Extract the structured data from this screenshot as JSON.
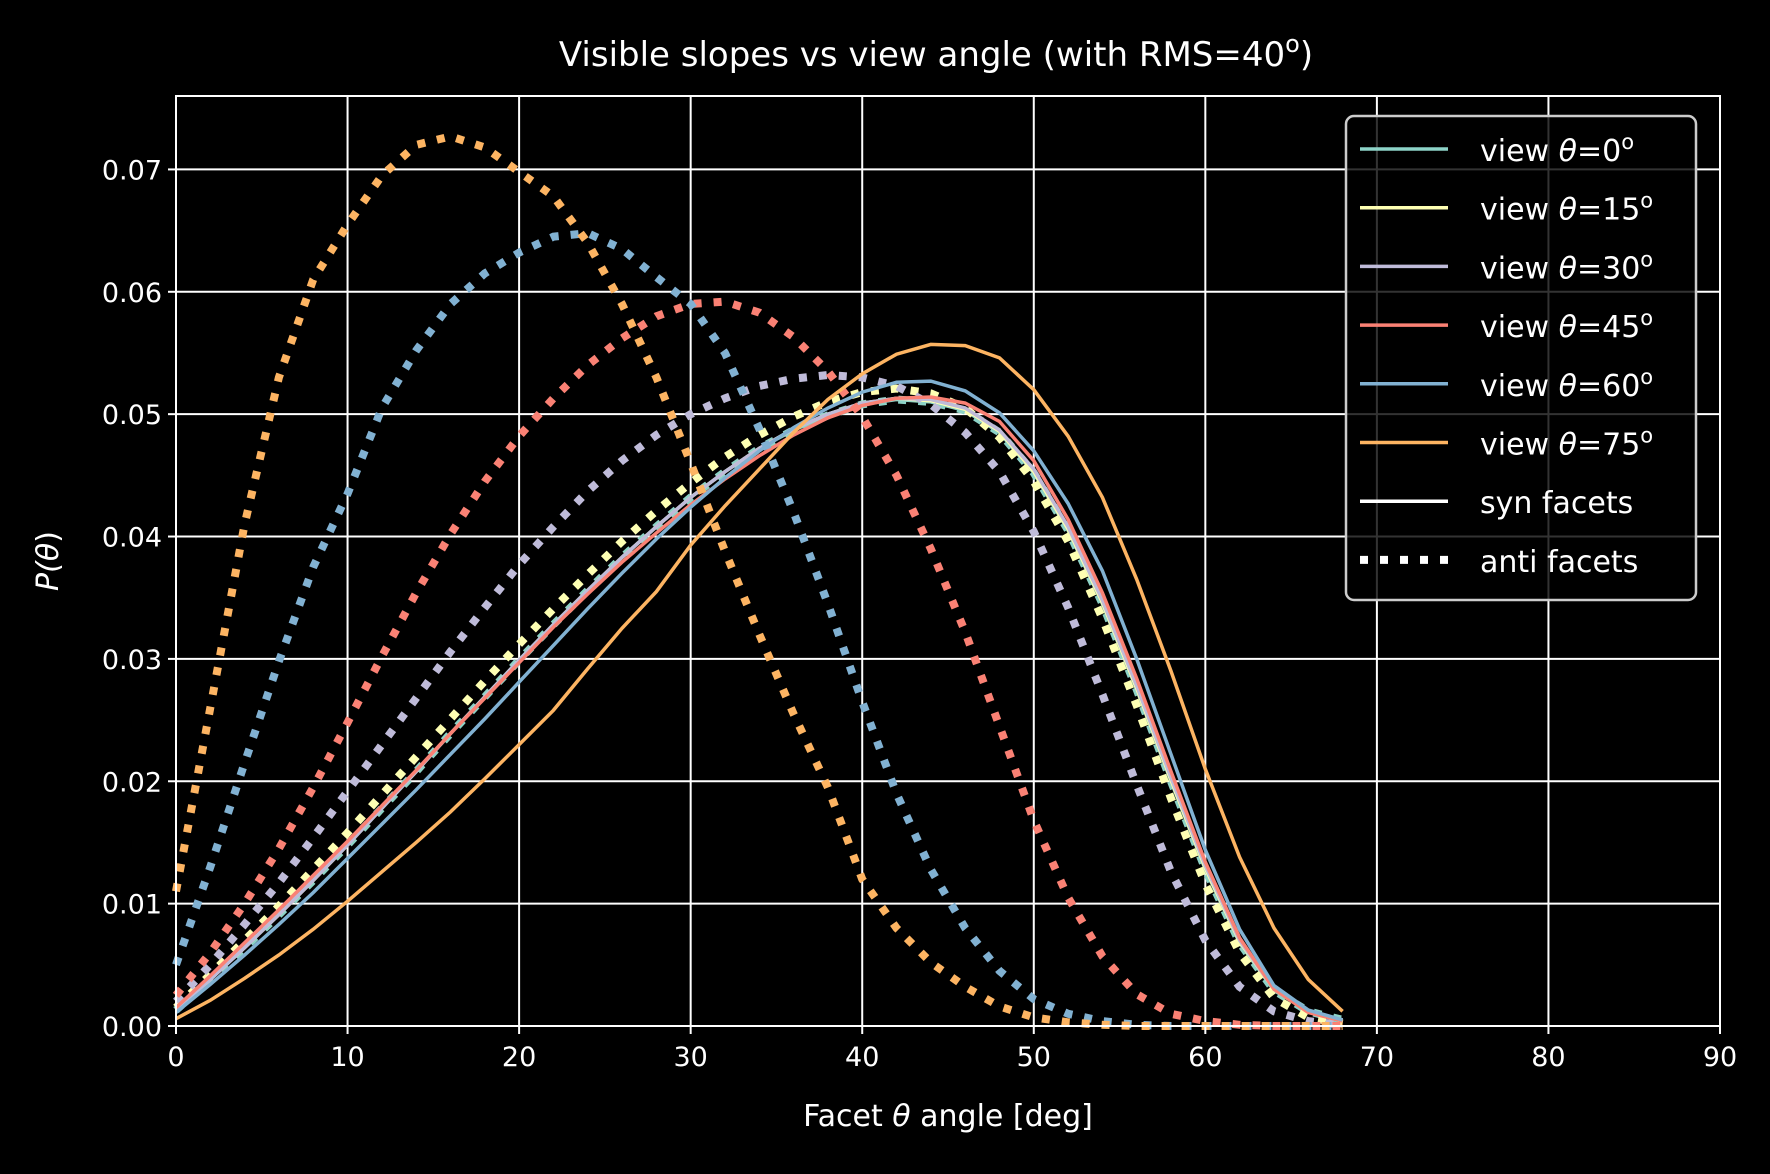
{
  "chart_data": {
    "type": "line",
    "title": "Visible slopes vs view angle (with RMS=40",
    "title_superscript": "o",
    "title_suffix": ")",
    "xlabel_prefix": "Facet ",
    "xlabel_symbol": "θ",
    "xlabel_suffix": " angle [deg]",
    "ylabel_prefix": "P(",
    "ylabel_symbol": "θ",
    "ylabel_suffix": ")",
    "xlim": [
      0,
      90
    ],
    "ylim": [
      0,
      0.076
    ],
    "xticks": [
      "0",
      "10",
      "20",
      "30",
      "40",
      "50",
      "60",
      "70",
      "80",
      "90"
    ],
    "yticks": [
      "0.00",
      "0.01",
      "0.02",
      "0.03",
      "0.04",
      "0.05",
      "0.06",
      "0.07"
    ],
    "grid": true,
    "background": "#000000",
    "legend_position": "top-right",
    "legend": [
      {
        "prefix": "view ",
        "symbol": "θ",
        "value": "=0",
        "sup": "o",
        "color": "#8dd3c7",
        "style": "solid"
      },
      {
        "prefix": "view ",
        "symbol": "θ",
        "value": "=15",
        "sup": "o",
        "color": "#feffb3",
        "style": "solid"
      },
      {
        "prefix": "view ",
        "symbol": "θ",
        "value": "=30",
        "sup": "o",
        "color": "#bfbbd9",
        "style": "solid"
      },
      {
        "prefix": "view ",
        "symbol": "θ",
        "value": "=45",
        "sup": "o",
        "color": "#fa8174",
        "style": "solid"
      },
      {
        "prefix": "view ",
        "symbol": "θ",
        "value": "=60",
        "sup": "o",
        "color": "#81b1d2",
        "style": "solid"
      },
      {
        "prefix": "view ",
        "symbol": "θ",
        "value": "=75",
        "sup": "o",
        "color": "#fdb462",
        "style": "solid"
      },
      {
        "prefix": "syn facets",
        "symbol": "",
        "value": "",
        "sup": "",
        "color": "#ffffff",
        "style": "solid"
      },
      {
        "prefix": "anti facets",
        "symbol": "",
        "value": "",
        "sup": "",
        "color": "#ffffff",
        "style": "dotted"
      }
    ],
    "x": [
      0,
      2,
      4,
      6,
      8,
      10,
      12,
      14,
      16,
      18,
      20,
      22,
      24,
      26,
      28,
      30,
      32,
      34,
      36,
      38,
      40,
      42,
      44,
      46,
      48,
      50,
      52,
      54,
      56,
      58,
      60,
      62,
      64,
      66,
      68
    ],
    "series": [
      {
        "view": 0,
        "kind": "syn",
        "color": "#8dd3c7",
        "style": "solid",
        "values": [
          0.0013,
          0.0038,
          0.0064,
          0.0091,
          0.0119,
          0.0148,
          0.0178,
          0.0208,
          0.0239,
          0.0269,
          0.0299,
          0.0328,
          0.0356,
          0.0383,
          0.0408,
          0.0432,
          0.0453,
          0.0472,
          0.0487,
          0.0499,
          0.0508,
          0.0512,
          0.051,
          0.0503,
          0.0485,
          0.0452,
          0.0405,
          0.0345,
          0.0275,
          0.02,
          0.0128,
          0.0068,
          0.0029,
          0.0012,
          0.0005
        ]
      },
      {
        "view": 0,
        "kind": "anti",
        "color": "#8dd3c7",
        "style": "dotted",
        "values": [
          0.0013,
          0.0038,
          0.0064,
          0.0091,
          0.0119,
          0.0148,
          0.0178,
          0.0208,
          0.0239,
          0.0269,
          0.0299,
          0.0328,
          0.0356,
          0.0383,
          0.0408,
          0.0432,
          0.0453,
          0.0472,
          0.0487,
          0.0499,
          0.0508,
          0.0512,
          0.051,
          0.0503,
          0.0485,
          0.0452,
          0.0405,
          0.0345,
          0.0275,
          0.02,
          0.0128,
          0.0068,
          0.0029,
          0.0012,
          0.0005
        ]
      },
      {
        "view": 15,
        "kind": "syn",
        "color": "#feffb3",
        "style": "solid",
        "values": [
          0.0013,
          0.0038,
          0.0064,
          0.0091,
          0.0119,
          0.0148,
          0.0178,
          0.0208,
          0.0239,
          0.0269,
          0.0299,
          0.0328,
          0.0356,
          0.0383,
          0.0408,
          0.0432,
          0.0453,
          0.0472,
          0.0488,
          0.05,
          0.0509,
          0.0513,
          0.0511,
          0.0504,
          0.0486,
          0.0453,
          0.0406,
          0.0346,
          0.0276,
          0.0201,
          0.0129,
          0.0069,
          0.003,
          0.0012,
          0.0005
        ]
      },
      {
        "view": 15,
        "kind": "anti",
        "color": "#feffb3",
        "style": "dotted",
        "values": [
          0.0015,
          0.0042,
          0.007,
          0.0098,
          0.0128,
          0.0158,
          0.0189,
          0.022,
          0.0251,
          0.0282,
          0.0312,
          0.0341,
          0.0369,
          0.0396,
          0.0421,
          0.0444,
          0.0465,
          0.0483,
          0.0498,
          0.051,
          0.0518,
          0.0521,
          0.0517,
          0.0505,
          0.0481,
          0.0445,
          0.0396,
          0.0333,
          0.0262,
          0.0186,
          0.0116,
          0.006,
          0.0023,
          0.0007,
          0.0002
        ]
      },
      {
        "view": 30,
        "kind": "syn",
        "color": "#bfbbd9",
        "style": "solid",
        "values": [
          0.0013,
          0.0038,
          0.0064,
          0.0091,
          0.0119,
          0.0148,
          0.0178,
          0.0208,
          0.0239,
          0.0269,
          0.0299,
          0.0328,
          0.0356,
          0.0383,
          0.0408,
          0.0432,
          0.0453,
          0.0472,
          0.0488,
          0.05,
          0.0509,
          0.0513,
          0.0512,
          0.0505,
          0.0487,
          0.0455,
          0.0408,
          0.0348,
          0.0278,
          0.0203,
          0.0131,
          0.007,
          0.003,
          0.0012,
          0.0005
        ]
      },
      {
        "view": 30,
        "kind": "anti",
        "color": "#bfbbd9",
        "style": "dotted",
        "values": [
          0.002,
          0.005,
          0.0083,
          0.0117,
          0.0154,
          0.0192,
          0.023,
          0.0268,
          0.0306,
          0.0342,
          0.0377,
          0.0408,
          0.0437,
          0.0462,
          0.0483,
          0.05,
          0.0513,
          0.0523,
          0.0529,
          0.0532,
          0.053,
          0.0523,
          0.0508,
          0.0485,
          0.0453,
          0.0404,
          0.0342,
          0.0271,
          0.0197,
          0.0126,
          0.007,
          0.0032,
          0.0012,
          0.0004,
          0.0001
        ]
      },
      {
        "view": 45,
        "kind": "syn",
        "color": "#fa8174",
        "style": "solid",
        "values": [
          0.0015,
          0.0041,
          0.0068,
          0.0095,
          0.0123,
          0.0151,
          0.018,
          0.0209,
          0.0239,
          0.0268,
          0.0297,
          0.0326,
          0.0353,
          0.0379,
          0.0403,
          0.0426,
          0.0447,
          0.0466,
          0.0483,
          0.0497,
          0.0507,
          0.0513,
          0.0514,
          0.0509,
          0.0494,
          0.0462,
          0.0414,
          0.0354,
          0.0284,
          0.0208,
          0.0134,
          0.0072,
          0.003,
          0.0011,
          0.0004
        ]
      },
      {
        "view": 45,
        "kind": "anti",
        "color": "#fa8174",
        "style": "dotted",
        "values": [
          0.0025,
          0.006,
          0.01,
          0.0145,
          0.0195,
          0.0248,
          0.0302,
          0.0354,
          0.0402,
          0.0445,
          0.0482,
          0.0513,
          0.054,
          0.0562,
          0.058,
          0.059,
          0.0592,
          0.0583,
          0.0563,
          0.0535,
          0.0498,
          0.045,
          0.039,
          0.0322,
          0.0245,
          0.0168,
          0.0105,
          0.0057,
          0.0026,
          0.001,
          0.0004,
          0.0001,
          0.0,
          0.0,
          0.0
        ]
      },
      {
        "view": 60,
        "kind": "syn",
        "color": "#81b1d2",
        "style": "solid",
        "values": [
          0.0011,
          0.0034,
          0.0058,
          0.0083,
          0.0109,
          0.0137,
          0.0165,
          0.0193,
          0.0222,
          0.0251,
          0.0281,
          0.0311,
          0.0341,
          0.037,
          0.0398,
          0.0424,
          0.0448,
          0.047,
          0.0489,
          0.0505,
          0.0518,
          0.0526,
          0.0527,
          0.0519,
          0.0501,
          0.047,
          0.0427,
          0.0372,
          0.03,
          0.0222,
          0.0144,
          0.0079,
          0.0033,
          0.0013,
          0.0005
        ]
      },
      {
        "view": 60,
        "kind": "anti",
        "color": "#81b1d2",
        "style": "dotted",
        "values": [
          0.005,
          0.013,
          0.0215,
          0.0298,
          0.0375,
          0.0435,
          0.0505,
          0.0552,
          0.059,
          0.0615,
          0.0632,
          0.0645,
          0.0648,
          0.0635,
          0.0612,
          0.059,
          0.055,
          0.0488,
          0.042,
          0.0345,
          0.0265,
          0.019,
          0.0128,
          0.008,
          0.0045,
          0.0022,
          0.001,
          0.0004,
          0.0001,
          0.0,
          0.0,
          0.0,
          0.0,
          0.0,
          0.0
        ]
      },
      {
        "view": 75,
        "kind": "syn",
        "color": "#fdb462",
        "style": "solid",
        "values": [
          0.0006,
          0.0021,
          0.0039,
          0.0058,
          0.0079,
          0.0102,
          0.0126,
          0.015,
          0.0175,
          0.0202,
          0.023,
          0.0258,
          0.0292,
          0.0325,
          0.0355,
          0.0393,
          0.0425,
          0.0455,
          0.0485,
          0.0512,
          0.0533,
          0.0549,
          0.0557,
          0.0556,
          0.0546,
          0.052,
          0.0482,
          0.0432,
          0.0365,
          0.029,
          0.021,
          0.0138,
          0.008,
          0.0038,
          0.0012
        ]
      },
      {
        "view": 75,
        "kind": "anti",
        "color": "#fdb462",
        "style": "dotted",
        "values": [
          0.011,
          0.026,
          0.041,
          0.053,
          0.061,
          0.0655,
          0.0695,
          0.072,
          0.0727,
          0.0718,
          0.0698,
          0.0678,
          0.064,
          0.059,
          0.053,
          0.046,
          0.0388,
          0.032,
          0.0255,
          0.0195,
          0.012,
          0.008,
          0.0052,
          0.0032,
          0.0016,
          0.0007,
          0.0003,
          0.0001,
          0.0,
          0.0,
          0.0,
          0.0,
          0.0,
          0.0,
          0.0
        ]
      }
    ]
  }
}
